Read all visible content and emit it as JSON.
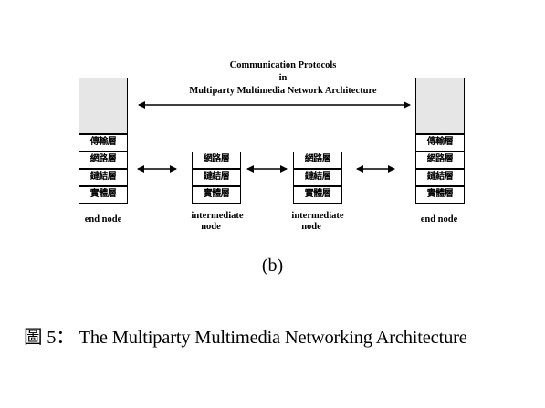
{
  "title": {
    "line1": "Communication Protocols",
    "line2": "in",
    "line3": "Multiparty Multimedia Network Architecture"
  },
  "layers": {
    "transport": "傳輸層",
    "network": "網路層",
    "link": "鏈結層",
    "physical": "實體層"
  },
  "nodes": {
    "end_left": "end node",
    "intermediate_1": [
      "intermediate",
      "node"
    ],
    "intermediate_2": [
      "intermediate",
      "node"
    ],
    "end_right": "end node"
  },
  "subfigure_label": "(b)",
  "caption": "圖 5： The Multiparty Multimedia Networking Architecture"
}
